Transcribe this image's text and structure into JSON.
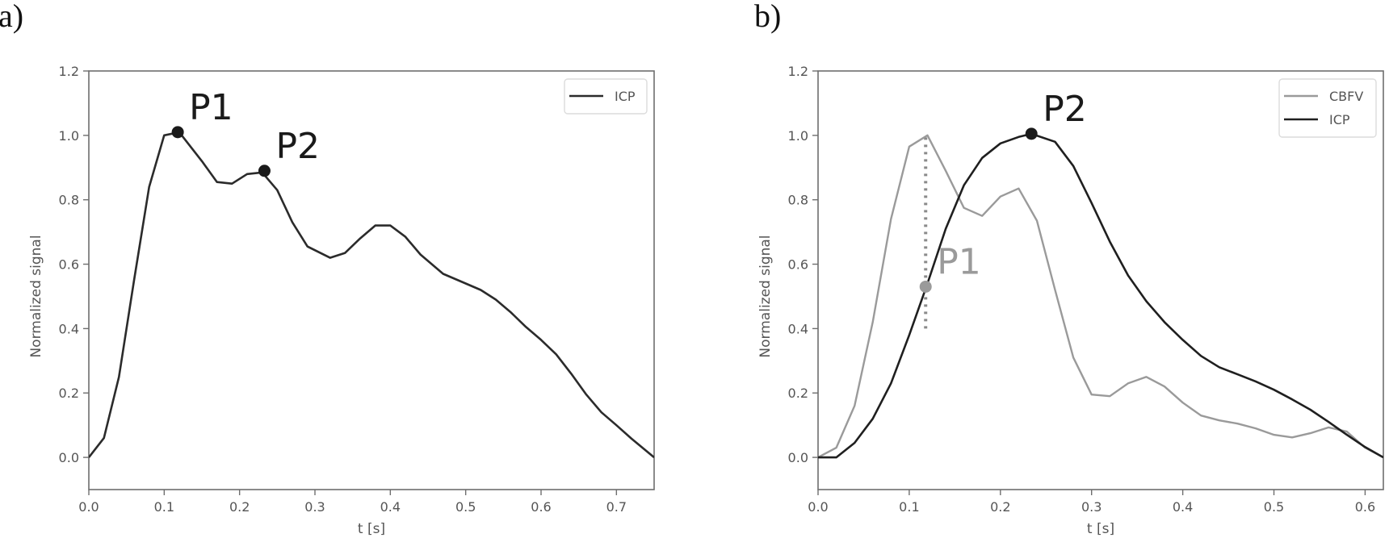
{
  "panels": {
    "a": {
      "label": "a)"
    },
    "b": {
      "label": "b)"
    }
  },
  "chart_data": [
    {
      "type": "line",
      "panel": "a)",
      "title": "",
      "xlabel": "t [s]",
      "ylabel": "Normalized signal",
      "xlim": [
        0.0,
        0.75
      ],
      "ylim": [
        -0.1,
        1.2
      ],
      "xticks": [
        "0.0",
        "0.1",
        "0.2",
        "0.3",
        "0.4",
        "0.5",
        "0.6",
        "0.7"
      ],
      "yticks": [
        "0.0",
        "0.2",
        "0.4",
        "0.6",
        "0.8",
        "1.0",
        "1.2"
      ],
      "grid": false,
      "legend": {
        "position": "upper right",
        "entries": [
          "ICP"
        ]
      },
      "series": [
        {
          "name": "ICP",
          "color": "#2b2b2b",
          "x": [
            0.0,
            0.02,
            0.04,
            0.06,
            0.08,
            0.1,
            0.12,
            0.15,
            0.17,
            0.19,
            0.21,
            0.23,
            0.25,
            0.27,
            0.29,
            0.32,
            0.34,
            0.36,
            0.38,
            0.4,
            0.42,
            0.44,
            0.47,
            0.5,
            0.52,
            0.54,
            0.56,
            0.58,
            0.6,
            0.62,
            0.64,
            0.66,
            0.68,
            0.7,
            0.72,
            0.75
          ],
          "y": [
            0.0,
            0.06,
            0.25,
            0.55,
            0.84,
            1.0,
            1.01,
            0.92,
            0.855,
            0.85,
            0.88,
            0.885,
            0.83,
            0.73,
            0.655,
            0.62,
            0.635,
            0.68,
            0.72,
            0.72,
            0.685,
            0.63,
            0.57,
            0.54,
            0.52,
            0.49,
            0.45,
            0.405,
            0.365,
            0.32,
            0.26,
            0.195,
            0.14,
            0.1,
            0.058,
            0.0
          ]
        }
      ],
      "annotations": [
        {
          "text": "P1",
          "x": 0.118,
          "y": 1.01,
          "color": "#1a1a1a"
        },
        {
          "text": "P2",
          "x": 0.233,
          "y": 0.89,
          "color": "#1a1a1a"
        }
      ]
    },
    {
      "type": "line",
      "panel": "b)",
      "title": "",
      "xlabel": "t [s]",
      "ylabel": "Normalized signal",
      "xlim": [
        0.0,
        0.62
      ],
      "ylim": [
        -0.1,
        1.2
      ],
      "xticks": [
        "0.0",
        "0.1",
        "0.2",
        "0.3",
        "0.4",
        "0.5",
        "0.6"
      ],
      "yticks": [
        "0.0",
        "0.2",
        "0.4",
        "0.6",
        "0.8",
        "1.0",
        "1.2"
      ],
      "grid": false,
      "legend": {
        "position": "upper right",
        "entries": [
          "CBFV",
          "ICP"
        ]
      },
      "series": [
        {
          "name": "CBFV",
          "color": "#9a9a9a",
          "x": [
            0.0,
            0.02,
            0.04,
            0.06,
            0.08,
            0.1,
            0.12,
            0.14,
            0.16,
            0.18,
            0.2,
            0.22,
            0.24,
            0.26,
            0.28,
            0.3,
            0.32,
            0.34,
            0.36,
            0.38,
            0.4,
            0.42,
            0.44,
            0.46,
            0.48,
            0.5,
            0.52,
            0.54,
            0.56,
            0.58,
            0.6,
            0.62
          ],
          "y": [
            0.0,
            0.03,
            0.16,
            0.42,
            0.74,
            0.965,
            1.0,
            0.89,
            0.775,
            0.75,
            0.81,
            0.835,
            0.735,
            0.52,
            0.31,
            0.195,
            0.19,
            0.23,
            0.25,
            0.22,
            0.17,
            0.13,
            0.115,
            0.105,
            0.09,
            0.07,
            0.062,
            0.075,
            0.093,
            0.08,
            0.03,
            0.0
          ]
        },
        {
          "name": "ICP",
          "color": "#1f1f1f",
          "x": [
            0.0,
            0.02,
            0.04,
            0.06,
            0.08,
            0.1,
            0.12,
            0.14,
            0.16,
            0.18,
            0.2,
            0.22,
            0.234,
            0.26,
            0.28,
            0.3,
            0.32,
            0.34,
            0.36,
            0.38,
            0.4,
            0.42,
            0.44,
            0.46,
            0.48,
            0.5,
            0.52,
            0.54,
            0.56,
            0.58,
            0.6,
            0.62
          ],
          "y": [
            0.0,
            0.0,
            0.045,
            0.12,
            0.23,
            0.38,
            0.54,
            0.71,
            0.845,
            0.93,
            0.975,
            0.995,
            1.005,
            0.98,
            0.905,
            0.79,
            0.67,
            0.565,
            0.485,
            0.42,
            0.365,
            0.315,
            0.28,
            0.258,
            0.236,
            0.21,
            0.18,
            0.148,
            0.11,
            0.07,
            0.032,
            0.0
          ]
        }
      ],
      "annotations": [
        {
          "text": "P1",
          "x": 0.118,
          "y": 0.53,
          "color": "#9a9a9a",
          "vertical_dotted_line": {
            "x": 0.118,
            "y_from": 0.4,
            "y_to": 1.0
          }
        },
        {
          "text": "P2",
          "x": 0.234,
          "y": 1.005,
          "color": "#1a1a1a"
        }
      ]
    }
  ]
}
